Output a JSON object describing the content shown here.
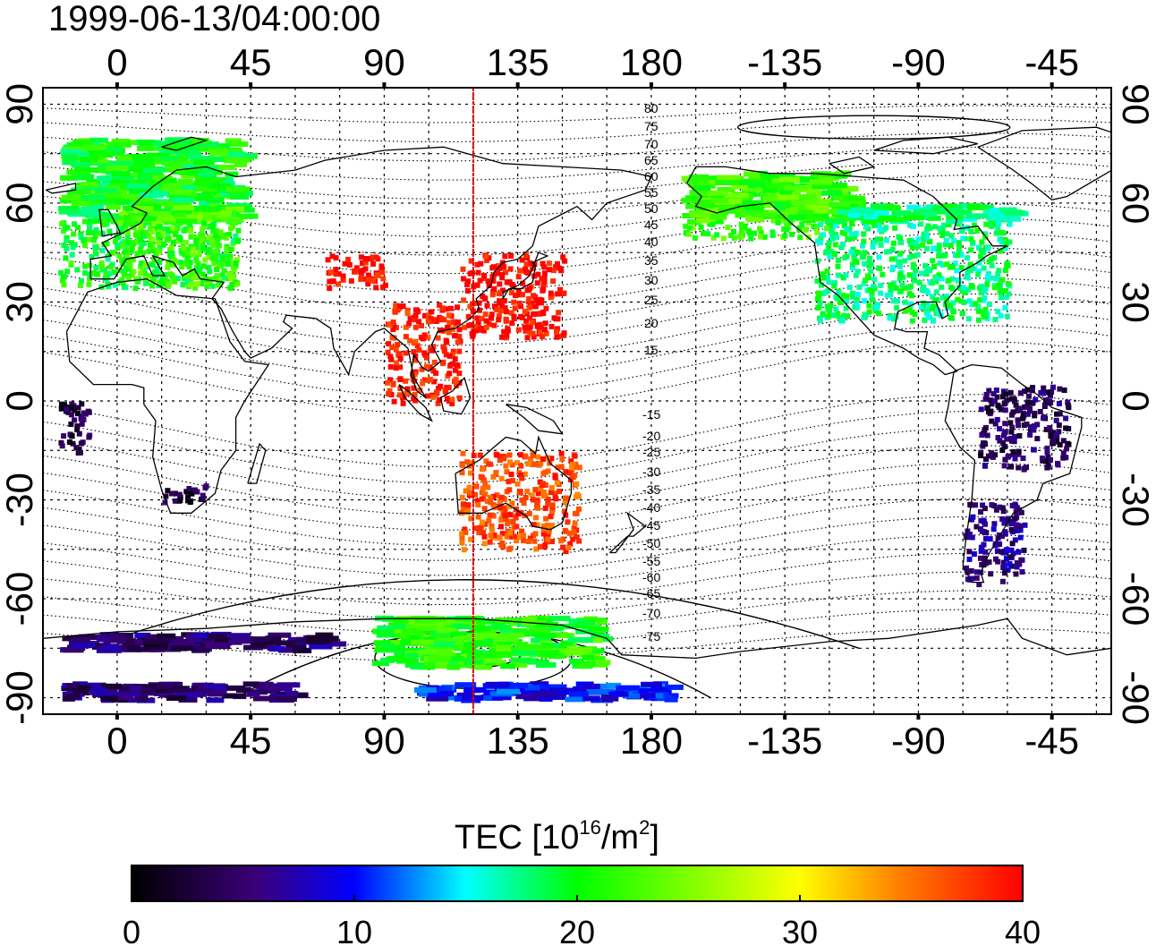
{
  "title": "1999-06-13/04:00:00",
  "map": {
    "lon_ticks_top": [
      "0",
      "45",
      "90",
      "135",
      "180",
      "-135",
      "-90",
      "-45"
    ],
    "lon_ticks_bottom": [
      "0",
      "45",
      "90",
      "135",
      "180",
      "-135",
      "-90",
      "-45"
    ],
    "lat_ticks_left": [
      "90",
      "60",
      "30",
      "0",
      "-30",
      "-60",
      "-90"
    ],
    "lat_ticks_right": [
      "90",
      "60",
      "30",
      "0",
      "-30",
      "-60",
      "-90"
    ],
    "lon_range": [
      -25,
      335
    ],
    "lat_range": [
      -95,
      95
    ],
    "grid": true,
    "coastline_color": "#000000",
    "marker_longitude": 120,
    "marker_color": "#e00000",
    "contour_labels_north": [
      "80",
      "75",
      "70",
      "65",
      "60",
      "55",
      "50",
      "45",
      "40",
      "35",
      "30",
      "25",
      "20",
      "15"
    ],
    "contour_labels_south": [
      "-15",
      "-20",
      "-25",
      "-30",
      "-35",
      "-40",
      "-45",
      "-50",
      "-55",
      "-60",
      "-65",
      "-70",
      "-75"
    ]
  },
  "colorbar": {
    "title_main": "TEC  [10",
    "title_exp": "16",
    "title_unit": "/m",
    "title_exp2": "2",
    "title_end": "]",
    "ticks": [
      "0",
      "10",
      "20",
      "30",
      "40"
    ],
    "min": 0,
    "max": 40,
    "colors": [
      "#000000",
      "#3a0078",
      "#0000ff",
      "#00ffff",
      "#00ff00",
      "#ffff00",
      "#ff8000",
      "#ff0000"
    ]
  },
  "chart_data": {
    "type": "heatmap",
    "title": "1999-06-13/04:00:00",
    "xlabel": "",
    "ylabel": "",
    "value_label": "TEC [10^16/m^2]",
    "value_range": [
      0,
      40
    ],
    "regions": [
      {
        "lon": [
          -20,
          40
        ],
        "lat": [
          35,
          80
        ],
        "tec": 20
      },
      {
        "lon": [
          0,
          40
        ],
        "lat": [
          35,
          60
        ],
        "tec": 22
      },
      {
        "lon": [
          70,
          90
        ],
        "lat": [
          35,
          45
        ],
        "tec": 40
      },
      {
        "lon": [
          115,
          150
        ],
        "lat": [
          20,
          45
        ],
        "tec": 40
      },
      {
        "lon": [
          90,
          115
        ],
        "lat": [
          0,
          30
        ],
        "tec": 39
      },
      {
        "lon": [
          115,
          155
        ],
        "lat": [
          -45,
          -15
        ],
        "tec": 37
      },
      {
        "lon": [
          190,
          245
        ],
        "lat": [
          50,
          70
        ],
        "tec": 22
      },
      {
        "lon": [
          235,
          300
        ],
        "lat": [
          25,
          60
        ],
        "tec": 18
      },
      {
        "lon": [
          290,
          320
        ],
        "lat": [
          -20,
          5
        ],
        "tec": 4
      },
      {
        "lon": [
          285,
          305
        ],
        "lat": [
          -55,
          -30
        ],
        "tec": 6
      },
      {
        "lon": [
          100,
          185
        ],
        "lat": [
          -90,
          -85
        ],
        "tec": 10
      },
      {
        "lon": [
          -20,
          60
        ],
        "lat": [
          -90,
          -85
        ],
        "tec": 5
      },
      {
        "lon": [
          -20,
          70
        ],
        "lat": [
          -75,
          -70
        ],
        "tec": 5
      },
      {
        "lon": [
          85,
          160
        ],
        "lat": [
          -80,
          -65
        ],
        "tec": 21
      },
      {
        "lon": [
          -20,
          -10
        ],
        "lat": [
          -15,
          0
        ],
        "tec": 3
      },
      {
        "lon": [
          15,
          30
        ],
        "lat": [
          -30,
          -25
        ],
        "tec": 3
      }
    ]
  }
}
